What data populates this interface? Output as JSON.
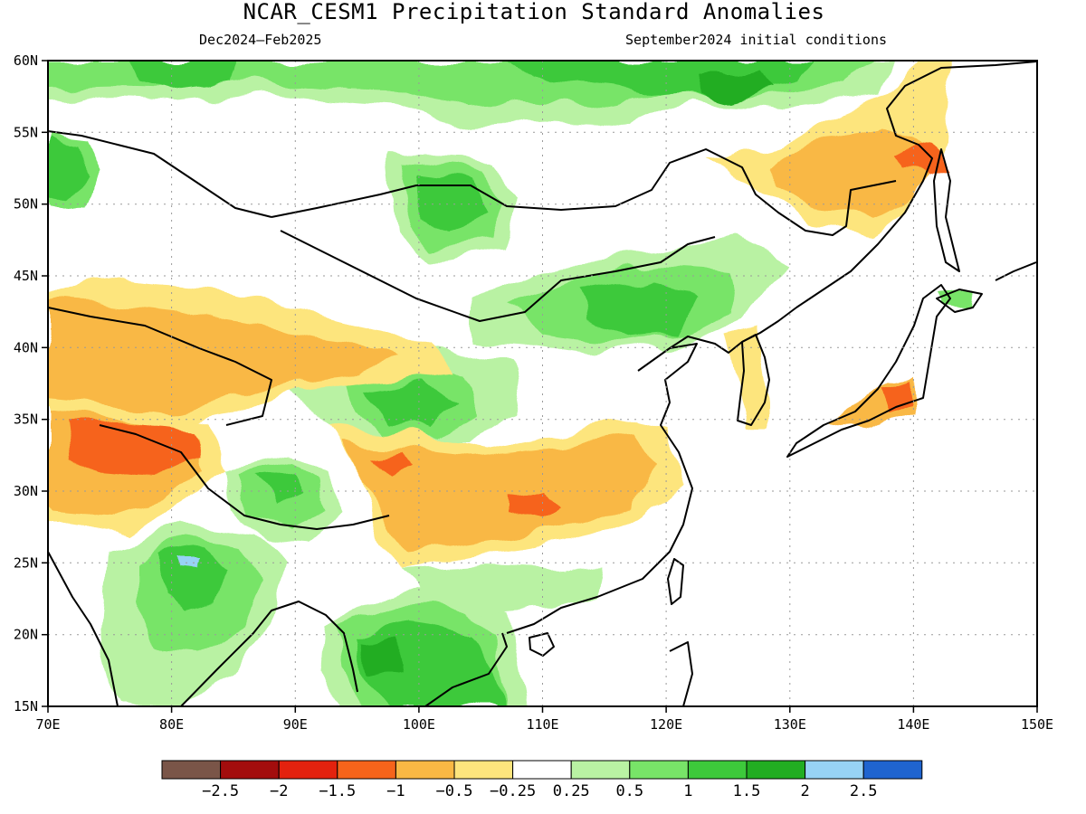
{
  "title": "NCAR_CESM1 Precipitation Standard Anomalies",
  "subtitle_left": "Dec2024–Feb2025",
  "subtitle_right": "September2024 initial conditions",
  "chart_data": {
    "type": "heatmap",
    "title": "NCAR_CESM1 Precipitation Standard Anomalies",
    "period": "Dec2024–Feb2025",
    "initialization": "September2024 initial conditions",
    "lon_range": [
      70,
      150
    ],
    "lat_range": [
      15,
      60
    ],
    "grid": true,
    "x_ticks": [
      "70E",
      "80E",
      "90E",
      "100E",
      "110E",
      "120E",
      "130E",
      "140E",
      "150E"
    ],
    "y_ticks": [
      "15N",
      "20N",
      "25N",
      "30N",
      "35N",
      "40N",
      "45N",
      "50N",
      "55N",
      "60N"
    ],
    "colorbar": {
      "labels": [
        "−2.5",
        "−2",
        "−1.5",
        "−1",
        "−0.5",
        "−0.25",
        "0.25",
        "0.5",
        "1",
        "1.5",
        "2",
        "2.5"
      ],
      "thresholds": [
        -2.5,
        -2,
        -1.5,
        -1,
        -0.5,
        -0.25,
        0.25,
        0.5,
        1,
        1.5,
        2,
        2.5
      ],
      "colors": [
        "#7a5548",
        "#a30d0d",
        "#e3220e",
        "#f6641b",
        "#f9b844",
        "#fde57d",
        "#ffffff",
        "#b9f2a3",
        "#78e468",
        "#3dc93b",
        "#22ad22",
        "#97d3f5",
        "#1f64cf"
      ]
    },
    "anomaly_regions": [
      {
        "region": "Northern Siberia (55-60N, 70-125E)",
        "level": "0.5 to 1.5"
      },
      {
        "region": "Mongolia / Inner Mongolia (40-45N, 105-122E)",
        "level": "0.5 to 1.5"
      },
      {
        "region": "Central Tibet Plateau (33-38N, 98-106E)",
        "level": "0.5 to 1.5"
      },
      {
        "region": "Lake Baikal area (49-52N, 100-105E)",
        "level": "0.5 to 1.5"
      },
      {
        "region": "Central India (21-26N, 78-83E)",
        "level": "1 to 2.5"
      },
      {
        "region": "Indochina (15-20N, 94-110E)",
        "level": "0.5 to 2"
      },
      {
        "region": "Northern India / Himalaya (30-35N, 72-83E)",
        "level": "-1.5 to -0.5"
      },
      {
        "region": "Yangtze basin (28-33N, 100-120E)",
        "level": "-1.5 to -0.25"
      },
      {
        "region": "Central Asia (37-45N, 70-100E)",
        "level": "-1 to -0.25"
      },
      {
        "region": "Northeast China / Far East (50-55N, 130-142E)",
        "level": "-1.5 to -0.25"
      },
      {
        "region": "Central Japan (35-37N, 136-140E)",
        "level": "-1.5 to -0.5"
      }
    ]
  }
}
